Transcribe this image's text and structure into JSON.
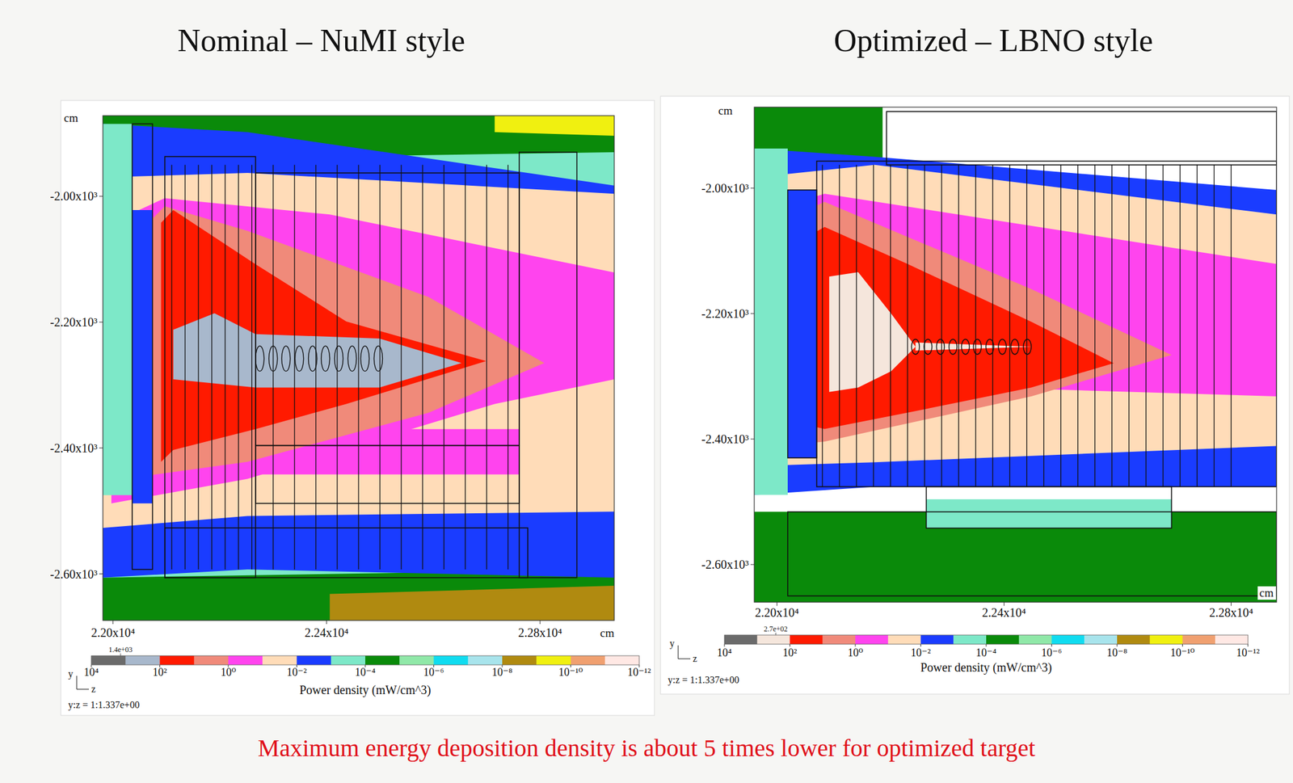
{
  "chart_data": [
    {
      "type": "contour",
      "title": "Nominal – NuMI style",
      "x_label": "cm",
      "y_label": "cm",
      "xlim": [
        21981,
        22939
      ],
      "ylim": [
        -2674,
        -1872
      ],
      "xticks": [
        {
          "value": 22000,
          "label": "2.20x10⁴"
        },
        {
          "value": 22400,
          "label": "2.24x10⁴"
        },
        {
          "value": 22800,
          "label": "2.28x10⁴"
        }
      ],
      "yticks": [
        {
          "value": -2000,
          "label": "-2.00x10³"
        },
        {
          "value": -2200,
          "label": "-2.20x10³"
        },
        {
          "value": -2400,
          "label": "-2.40x10³"
        },
        {
          "value": -2600,
          "label": "-2.60x10³"
        }
      ],
      "grid": false,
      "axis_icon": [
        "y",
        "z"
      ],
      "aspect_label": "y:z = 1:1.337e+00",
      "colorbar": {
        "label": "Power density (mW/cm^3)",
        "log": true,
        "range": [
          10000,
          1e-12
        ],
        "max": {
          "value": 1400,
          "label": "1.4e+03"
        },
        "ticks": [
          {
            "value": 10000,
            "label": "10⁴"
          },
          {
            "value": 100,
            "label": "10²"
          },
          {
            "value": 1,
            "label": "10⁰"
          },
          {
            "value": 0.01,
            "label": "10⁻²"
          },
          {
            "value": 0.0001,
            "label": "10⁻⁴"
          },
          {
            "value": 1e-06,
            "label": "10⁻⁶"
          },
          {
            "value": 1e-08,
            "label": "10⁻⁸"
          },
          {
            "value": 1e-10,
            "label": "10⁻¹⁰"
          },
          {
            "value": 1e-12,
            "label": "10⁻¹²"
          }
        ],
        "colors": [
          "#6b6b6b",
          "#a8b8cc",
          "#ff1a00",
          "#f08a7a",
          "#ff44ee",
          "#ffdcb8",
          "#1a3cff",
          "#7de8c8",
          "#0a8a0a",
          "#90e8a8",
          "#10dcf0",
          "#a8e4ec",
          "#b08a10",
          "#f0f010",
          "#f0a070",
          "#ffe8e4"
        ]
      },
      "regions": [
        {
          "value": 0.0001,
          "points": [
            [
              21981,
              -1871
            ],
            [
              22939,
              -1871
            ],
            [
              22939,
              -2674
            ],
            [
              21981,
              -2674
            ]
          ]
        },
        {
          "value": 1e-05,
          "points": [
            [
              21981,
              -1871
            ],
            [
              22939,
              -1871
            ],
            [
              22939,
              -1930
            ],
            [
              22406,
              -1937
            ],
            [
              21981,
              -1911
            ]
          ]
        },
        {
          "value": 1e-10,
          "points": [
            [
              22715,
              -1871
            ],
            [
              22939,
              -1871
            ],
            [
              22939,
              -1904
            ],
            [
              22715,
              -1898
            ]
          ]
        },
        {
          "value": 1e-05,
          "points": [
            [
              21981,
              -2606
            ],
            [
              22939,
              -2593
            ],
            [
              22939,
              -2674
            ],
            [
              21981,
              -2674
            ]
          ]
        },
        {
          "value": 1e-09,
          "points": [
            [
              22406,
              -2632
            ],
            [
              22939,
              -2619
            ],
            [
              22939,
              -2674
            ],
            [
              22406,
              -2674
            ]
          ]
        },
        {
          "value": 0.001,
          "points": [
            [
              21981,
              -1885
            ],
            [
              22252,
              -1898
            ],
            [
              22939,
              -1983
            ],
            [
              22939,
              -2606
            ],
            [
              22252,
              -2593
            ],
            [
              21981,
              -2606
            ]
          ]
        },
        {
          "value": 0.01,
          "points": [
            [
              21981,
              -1970
            ],
            [
              22252,
              -1963
            ],
            [
              22939,
              -1996
            ],
            [
              22939,
              -2501
            ],
            [
              22252,
              -2508
            ],
            [
              21981,
              -2527
            ]
          ]
        },
        {
          "value": 0.1,
          "points": [
            [
              21997,
              -2042
            ],
            [
              22097,
              -2003
            ],
            [
              22406,
              -2029
            ],
            [
              22939,
              -2121
            ],
            [
              22939,
              -2291
            ],
            [
              22715,
              -2330
            ],
            [
              22252,
              -2449
            ],
            [
              21997,
              -2488
            ]
          ]
        },
        {
          "value": 0.1,
          "points": [
            [
              22267,
              -2370
            ],
            [
              22761,
              -2370
            ],
            [
              22761,
              -2442
            ],
            [
              22267,
              -2442
            ]
          ]
        },
        {
          "value": 1,
          "points": [
            [
              22020,
              -2081
            ],
            [
              22097,
              -2016
            ],
            [
              22252,
              -2055
            ],
            [
              22591,
              -2160
            ],
            [
              22808,
              -2265
            ],
            [
              22591,
              -2344
            ],
            [
              22252,
              -2422
            ],
            [
              22020,
              -2449
            ]
          ]
        },
        {
          "value": 10,
          "points": [
            [
              22090,
              -2042
            ],
            [
              22113,
              -2022
            ],
            [
              22267,
              -2108
            ],
            [
              22437,
              -2199
            ],
            [
              22699,
              -2262
            ],
            [
              22437,
              -2330
            ],
            [
              22267,
              -2370
            ],
            [
              22113,
              -2403
            ],
            [
              22090,
              -2422
            ]
          ]
        },
        {
          "value": 100,
          "points": [
            [
              22113,
              -2212
            ],
            [
              22190,
              -2186
            ],
            [
              22267,
              -2219
            ],
            [
              22499,
              -2226
            ],
            [
              22653,
              -2265
            ],
            [
              22499,
              -2304
            ],
            [
              22267,
              -2304
            ],
            [
              22113,
              -2291
            ]
          ]
        },
        {
          "value": 0.0001,
          "points": [
            [
              21981,
              -1885
            ],
            [
              22036,
              -1885
            ],
            [
              22036,
              -2475
            ],
            [
              21981,
              -2475
            ]
          ]
        },
        {
          "value": 0.001,
          "points": [
            [
              22036,
              -2022
            ],
            [
              22074,
              -2022
            ],
            [
              22074,
              -2488
            ],
            [
              22036,
              -2488
            ]
          ]
        }
      ],
      "geometry": {
        "boxes": [
          [
            22036,
            -1885,
            22074,
            -2593
          ],
          [
            22097,
            -1937,
            22267,
            -2606
          ],
          [
            22267,
            -1963,
            22761,
            -2396
          ],
          [
            22267,
            -2396,
            22761,
            -2488
          ],
          [
            22761,
            -1930,
            22869,
            -2606
          ],
          [
            22097,
            -2527,
            22777,
            -2606
          ]
        ],
        "plates": {
          "z": [
            22110,
            22135,
            22160,
            22185,
            22210,
            22235,
            22260,
            22300,
            22340,
            22380,
            22420,
            22460,
            22500,
            22540,
            22580,
            22620,
            22660,
            22700,
            22740
          ],
          "y_top": -1950,
          "y_bottom": -2593
        },
        "target": {
          "z": [
            22275,
            22300,
            22324,
            22349,
            22374,
            22398,
            22423,
            22448,
            22472,
            22497
          ],
          "y": -2258,
          "half_length": 8,
          "half_height": 20
        }
      }
    },
    {
      "type": "contour",
      "title": "Optimized – LBNO style",
      "x_label": "cm",
      "y_label": "cm",
      "xlim": [
        21960,
        22880
      ],
      "ylim": [
        -2660,
        -1871
      ],
      "xticks": [
        {
          "value": 22000,
          "label": "2.20x10⁴"
        },
        {
          "value": 22400,
          "label": "2.24x10⁴"
        },
        {
          "value": 22800,
          "label": "2.28x10⁴"
        }
      ],
      "yticks": [
        {
          "value": -2000,
          "label": "-2.00x10³"
        },
        {
          "value": -2200,
          "label": "-2.20x10³"
        },
        {
          "value": -2400,
          "label": "-2.40x10³"
        },
        {
          "value": -2600,
          "label": "-2.60x10³"
        }
      ],
      "grid": false,
      "axis_icon": [
        "y",
        "z"
      ],
      "aspect_label": "y:z = 1:1.337e+00",
      "colorbar": {
        "label": "Power density (mW/cm^3)",
        "log": true,
        "range": [
          10000,
          1e-12
        ],
        "max": {
          "value": 270,
          "label": "2.7e+02"
        },
        "ticks": [
          {
            "value": 10000,
            "label": "10⁴"
          },
          {
            "value": 100,
            "label": "10²"
          },
          {
            "value": 1,
            "label": "10⁰"
          },
          {
            "value": 0.01,
            "label": "10⁻²"
          },
          {
            "value": 0.0001,
            "label": "10⁻⁴"
          },
          {
            "value": 1e-06,
            "label": "10⁻⁶"
          },
          {
            "value": 1e-08,
            "label": "10⁻⁸"
          },
          {
            "value": 1e-10,
            "label": "10⁻¹⁰"
          },
          {
            "value": 1e-12,
            "label": "10⁻¹²"
          }
        ],
        "colors": [
          "#6b6b6b",
          "#f5e6dc",
          "#ff1a00",
          "#f08a7a",
          "#ff44ee",
          "#ffdcb8",
          "#1a3cff",
          "#7de8c8",
          "#0a8a0a",
          "#90e8a8",
          "#10dcf0",
          "#a8e4ec",
          "#b08a10",
          "#f0f010",
          "#f0a070",
          "#ffe8e4"
        ]
      },
      "regions": [
        {
          "value": 1e-05,
          "points": [
            [
              21960,
              -1871
            ],
            [
              22186,
              -1871
            ],
            [
              22186,
              -1963
            ],
            [
              21960,
              -2003
            ]
          ]
        },
        {
          "value": 0.001,
          "points": [
            [
              21960,
              -1937
            ],
            [
              22172,
              -1950
            ],
            [
              22880,
              -2003
            ],
            [
              22880,
              -2476
            ],
            [
              22172,
              -2476
            ],
            [
              21960,
              -2489
            ]
          ]
        },
        {
          "value": 1e-05,
          "points": [
            [
              21960,
              -2516
            ],
            [
              22880,
              -2516
            ],
            [
              22880,
              -2660
            ],
            [
              21960,
              -2660
            ]
          ]
        },
        {
          "value": 0.0001,
          "points": [
            [
              22263,
              -2496
            ],
            [
              22695,
              -2496
            ],
            [
              22695,
              -2542
            ],
            [
              22263,
              -2542
            ]
          ]
        },
        {
          "value": 0.01,
          "points": [
            [
              21960,
              -1983
            ],
            [
              22172,
              -1963
            ],
            [
              22880,
              -2042
            ],
            [
              22880,
              -2411
            ],
            [
              22172,
              -2437
            ],
            [
              21960,
              -2443
            ]
          ]
        },
        {
          "value": 0.1,
          "points": [
            [
              21983,
              -2036
            ],
            [
              22084,
              -2009
            ],
            [
              22880,
              -2121
            ],
            [
              22880,
              -2332
            ],
            [
              22375,
              -2318
            ],
            [
              22084,
              -2384
            ],
            [
              21983,
              -2417
            ]
          ]
        },
        {
          "value": 1,
          "points": [
            [
              22004,
              -2055
            ],
            [
              22084,
              -2022
            ],
            [
              22448,
              -2161
            ],
            [
              22695,
              -2266
            ],
            [
              22448,
              -2332
            ],
            [
              22084,
              -2404
            ],
            [
              22004,
              -2411
            ]
          ]
        },
        {
          "value": 10,
          "points": [
            [
              22019,
              -2095
            ],
            [
              22084,
              -2062
            ],
            [
              22230,
              -2121
            ],
            [
              22448,
              -2213
            ],
            [
              22593,
              -2279
            ],
            [
              22448,
              -2318
            ],
            [
              22230,
              -2358
            ],
            [
              22084,
              -2384
            ],
            [
              22019,
              -2371
            ]
          ]
        },
        {
          "value": 100,
          "points": [
            [
              22092,
              -2141
            ],
            [
              22143,
              -2134
            ],
            [
              22201,
              -2200
            ],
            [
              22244,
              -2253
            ],
            [
              22201,
              -2292
            ],
            [
              22143,
              -2318
            ],
            [
              22092,
              -2325
            ]
          ]
        },
        {
          "value": 100,
          "points": [
            [
              22244,
              -2246
            ],
            [
              22448,
              -2253
            ],
            [
              22244,
              -2259
            ]
          ]
        },
        {
          "value": 0.0001,
          "points": [
            [
              21960,
              -1937
            ],
            [
              22019,
              -1937
            ],
            [
              22019,
              -2489
            ],
            [
              21960,
              -2489
            ]
          ]
        },
        {
          "value": 0.001,
          "points": [
            [
              22019,
              -2003
            ],
            [
              22070,
              -2003
            ],
            [
              22070,
              -2430
            ],
            [
              22019,
              -2430
            ]
          ]
        }
      ],
      "geometry": {
        "boxes": [
          [
            22193,
            -1878,
            22880,
            -1963
          ],
          [
            22070,
            -1957,
            22880,
            -2476
          ],
          [
            22019,
            -2003,
            22070,
            -2430
          ],
          [
            22019,
            -2516,
            22880,
            -2650
          ],
          [
            22263,
            -2476,
            22695,
            -2542
          ]
        ],
        "plates": {
          "z": [
            22080,
            22110,
            22140,
            22170,
            22200,
            22230,
            22260,
            22290,
            22320,
            22350,
            22380,
            22410,
            22440,
            22470,
            22500,
            22530,
            22560,
            22590,
            22620,
            22650,
            22680,
            22710,
            22740,
            22770,
            22800
          ],
          "y_top": -1963,
          "y_bottom": -2476
        },
        "target": {
          "z": [
            22244,
            22266,
            22288,
            22310,
            22332,
            22353,
            22375,
            22397,
            22419,
            22441
          ],
          "y": -2253,
          "half_length": 7,
          "half_height": 12
        }
      }
    }
  ],
  "caption": "Maximum energy deposition density is about 5 times lower for optimized target"
}
